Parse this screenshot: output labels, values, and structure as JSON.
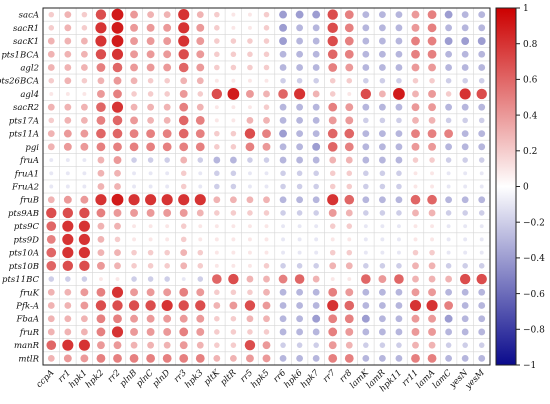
{
  "chart_data": {
    "type": "heatmap",
    "marker": "circle",
    "rows": [
      "sacA",
      "sacR1",
      "sacK1",
      "pts1BCA",
      "agl2",
      "pts26BCA",
      "agl4",
      "sacR2",
      "pts17A",
      "pts11A",
      "pgi",
      "fruA",
      "fruA1",
      "FruA2",
      "fruB",
      "pts9AB",
      "pts9C",
      "pts9D",
      "pts10A",
      "pts10B",
      "pts11BC",
      "fruK",
      "Pfk-A",
      "FbaA",
      "fruR",
      "manR",
      "mtlR"
    ],
    "columns": [
      "ccpA",
      "rr1",
      "hpk1",
      "hpk2",
      "rr2",
      "plnB",
      "plnC",
      "plnD",
      "rr3",
      "hpk3",
      "pltK",
      "pltR",
      "rr5",
      "hpk5",
      "rr6",
      "hpk6",
      "hpk7",
      "rr7",
      "rr8",
      "lamK",
      "lamR",
      "hpk11",
      "rr11",
      "lamA",
      "lamC",
      "yesN",
      "yesM"
    ],
    "values": [
      [
        0.2,
        0.3,
        0.2,
        0.7,
        0.9,
        0.4,
        0.3,
        0.3,
        0.8,
        0.3,
        0.2,
        0.1,
        0.1,
        0.2,
        -0.4,
        -0.4,
        -0.4,
        0.7,
        0.5,
        -0.3,
        -0.3,
        -0.3,
        0.4,
        0.5,
        -0.4,
        -0.3,
        -0.3
      ],
      [
        0.2,
        0.3,
        0.2,
        0.8,
        0.9,
        0.4,
        0.4,
        0.4,
        0.8,
        0.4,
        0.2,
        0.1,
        0.1,
        0.2,
        -0.4,
        -0.3,
        -0.3,
        0.7,
        0.5,
        -0.3,
        -0.3,
        -0.3,
        0.4,
        0.5,
        -0.3,
        -0.3,
        -0.3
      ],
      [
        0.3,
        0.3,
        0.3,
        0.8,
        0.9,
        0.4,
        0.4,
        0.4,
        0.8,
        0.4,
        0.2,
        0.2,
        0.2,
        0.2,
        -0.4,
        -0.3,
        -0.3,
        0.7,
        0.5,
        -0.3,
        -0.3,
        -0.3,
        0.5,
        0.5,
        -0.4,
        -0.4,
        -0.4
      ],
      [
        0.3,
        0.3,
        0.3,
        0.7,
        0.8,
        0.4,
        0.4,
        0.4,
        0.7,
        0.4,
        0.2,
        0.2,
        0.2,
        0.2,
        -0.3,
        -0.3,
        -0.3,
        0.6,
        0.5,
        -0.3,
        -0.3,
        -0.3,
        0.5,
        0.5,
        -0.3,
        -0.3,
        -0.3
      ],
      [
        0.3,
        0.3,
        0.3,
        0.5,
        0.6,
        0.4,
        0.4,
        0.4,
        0.6,
        0.4,
        0.2,
        0.2,
        0.2,
        0.2,
        -0.3,
        -0.3,
        -0.3,
        0.5,
        0.4,
        -0.3,
        -0.3,
        -0.3,
        0.4,
        0.4,
        -0.3,
        -0.3,
        -0.3
      ],
      [
        0.2,
        0.3,
        0.2,
        0.3,
        0.4,
        0.3,
        0.2,
        0.2,
        0.3,
        0.3,
        0.1,
        0.1,
        0.1,
        0.1,
        -0.2,
        -0.2,
        -0.2,
        0.2,
        0.2,
        -0.2,
        -0.2,
        -0.2,
        0.2,
        0.2,
        -0.2,
        -0.2,
        -0.2
      ],
      [
        0.1,
        0.1,
        0.1,
        0.4,
        0.5,
        0.2,
        0.2,
        0.2,
        0.4,
        0.2,
        0.7,
        0.9,
        0.4,
        0.3,
        0.6,
        0.8,
        0.3,
        0.2,
        0.1,
        0.7,
        0.3,
        0.9,
        0.3,
        0.4,
        0.2,
        0.8,
        0.7
      ],
      [
        0.3,
        0.3,
        0.3,
        0.6,
        0.8,
        0.3,
        0.3,
        0.3,
        0.5,
        0.3,
        0.1,
        0.1,
        0.1,
        0.2,
        -0.3,
        -0.3,
        -0.3,
        0.5,
        0.4,
        -0.3,
        -0.3,
        -0.3,
        0.4,
        0.4,
        -0.3,
        -0.3,
        -0.3
      ],
      [
        0.2,
        0.3,
        0.3,
        0.5,
        0.6,
        0.4,
        0.3,
        0.3,
        0.6,
        0.5,
        0.1,
        0.1,
        0.3,
        0.3,
        -0.3,
        -0.3,
        -0.3,
        0.4,
        0.4,
        -0.2,
        -0.2,
        -0.2,
        0.3,
        0.3,
        -0.2,
        -0.2,
        -0.2
      ],
      [
        0.3,
        0.4,
        0.4,
        0.6,
        0.6,
        0.5,
        0.5,
        0.5,
        0.6,
        0.5,
        0.2,
        0.2,
        0.7,
        0.5,
        -0.4,
        -0.3,
        -0.3,
        0.6,
        0.6,
        -0.3,
        -0.3,
        -0.3,
        0.5,
        0.5,
        0.5,
        -0.3,
        -0.3
      ],
      [
        0.3,
        0.4,
        0.4,
        0.5,
        0.5,
        0.5,
        0.5,
        0.5,
        0.5,
        0.5,
        0.2,
        0.2,
        0.5,
        0.4,
        -0.3,
        -0.3,
        -0.4,
        0.6,
        0.5,
        -0.3,
        -0.3,
        -0.3,
        0.4,
        0.4,
        -0.3,
        -0.3,
        -0.3
      ],
      [
        -0.1,
        -0.1,
        -0.1,
        0.3,
        0.4,
        -0.2,
        -0.2,
        -0.2,
        0.3,
        -0.2,
        -0.3,
        -0.3,
        -0.2,
        -0.2,
        -0.3,
        -0.3,
        -0.3,
        0.3,
        0.3,
        -0.3,
        -0.3,
        -0.3,
        0.2,
        0.2,
        -0.2,
        -0.2,
        -0.2
      ],
      [
        -0.1,
        -0.1,
        -0.1,
        0.3,
        0.3,
        -0.1,
        -0.1,
        -0.1,
        0.2,
        -0.1,
        -0.2,
        -0.2,
        -0.1,
        -0.1,
        -0.2,
        -0.2,
        -0.2,
        0.2,
        0.2,
        -0.2,
        -0.2,
        -0.2,
        0.1,
        0.1,
        -0.1,
        -0.1,
        -0.1
      ],
      [
        -0.1,
        -0.1,
        -0.1,
        0.3,
        0.3,
        -0.1,
        -0.1,
        -0.1,
        0.2,
        -0.1,
        -0.2,
        -0.2,
        -0.1,
        -0.1,
        -0.2,
        -0.2,
        -0.2,
        0.2,
        0.2,
        -0.2,
        -0.2,
        -0.2,
        0.1,
        0.1,
        -0.1,
        -0.1,
        -0.1
      ],
      [
        0.3,
        0.4,
        0.4,
        0.8,
        0.9,
        0.8,
        0.8,
        0.8,
        0.8,
        0.8,
        0.3,
        0.3,
        0.3,
        0.3,
        -0.3,
        -0.3,
        -0.3,
        0.8,
        0.6,
        -0.3,
        -0.3,
        -0.3,
        0.6,
        0.6,
        -0.3,
        -0.3,
        -0.3
      ],
      [
        0.7,
        0.7,
        0.7,
        0.5,
        0.4,
        0.4,
        0.4,
        0.4,
        0.4,
        0.3,
        0.2,
        0.2,
        0.2,
        0.2,
        -0.2,
        -0.2,
        -0.2,
        0.4,
        0.3,
        -0.2,
        -0.2,
        -0.2,
        0.3,
        0.3,
        -0.2,
        -0.2,
        -0.2
      ],
      [
        0.6,
        0.8,
        0.8,
        0.3,
        0.3,
        0.1,
        0.1,
        0.1,
        0.2,
        0.1,
        0.1,
        0.1,
        0.1,
        0.1,
        -0.1,
        -0.1,
        -0.1,
        0.2,
        0.2,
        -0.1,
        -0.1,
        -0.1,
        0.1,
        0.1,
        -0.1,
        -0.1,
        -0.1
      ],
      [
        0.5,
        0.8,
        0.8,
        0.3,
        0.2,
        0.1,
        0.1,
        0.1,
        0.2,
        0.1,
        0.1,
        0.1,
        0.1,
        0.1,
        -0.1,
        -0.1,
        -0.1,
        0.1,
        0.1,
        -0.1,
        -0.1,
        -0.1,
        0.1,
        0.1,
        -0.1,
        -0.1,
        -0.1
      ],
      [
        0.6,
        0.8,
        0.8,
        0.3,
        0.3,
        0.2,
        0.2,
        0.2,
        0.3,
        0.2,
        0.1,
        0.1,
        0.1,
        0.1,
        -0.1,
        -0.1,
        -0.1,
        0.2,
        0.2,
        -0.1,
        -0.1,
        -0.1,
        0.2,
        0.2,
        -0.1,
        -0.1,
        -0.1
      ],
      [
        0.6,
        0.7,
        0.7,
        0.4,
        0.3,
        0.2,
        0.2,
        0.2,
        0.3,
        0.2,
        0.1,
        0.1,
        0.1,
        0.2,
        -0.2,
        -0.2,
        -0.2,
        0.3,
        0.3,
        -0.2,
        -0.2,
        -0.2,
        0.3,
        0.3,
        -0.2,
        -0.2,
        -0.2
      ],
      [
        -0.2,
        -0.2,
        -0.2,
        0.1,
        0.1,
        -0.2,
        -0.2,
        -0.2,
        -0.1,
        -0.2,
        0.6,
        0.7,
        0.3,
        0.3,
        0.5,
        0.6,
        0.3,
        0.1,
        0.1,
        0.6,
        0.4,
        0.6,
        0.3,
        0.3,
        0.3,
        0.7,
        0.7
      ],
      [
        0.3,
        0.3,
        0.4,
        0.5,
        0.8,
        0.4,
        0.4,
        0.4,
        0.5,
        0.4,
        0.2,
        0.2,
        0.2,
        0.3,
        -0.3,
        -0.3,
        -0.3,
        0.5,
        0.4,
        -0.3,
        -0.3,
        -0.3,
        0.4,
        0.4,
        -0.3,
        -0.3,
        -0.3
      ],
      [
        0.3,
        0.3,
        0.4,
        0.7,
        0.7,
        0.7,
        0.7,
        0.8,
        0.7,
        0.7,
        0.3,
        0.4,
        0.7,
        0.4,
        -0.3,
        -0.3,
        -0.3,
        0.8,
        0.6,
        -0.3,
        -0.3,
        -0.3,
        0.8,
        0.8,
        0.5,
        -0.3,
        -0.3
      ],
      [
        0.3,
        0.3,
        0.3,
        0.5,
        0.5,
        0.4,
        0.4,
        0.4,
        0.4,
        0.4,
        0.2,
        0.2,
        0.3,
        0.3,
        -0.3,
        -0.3,
        -0.4,
        0.5,
        0.5,
        -0.4,
        -0.3,
        -0.3,
        0.4,
        0.4,
        -0.4,
        -0.3,
        -0.3
      ],
      [
        0.3,
        0.3,
        0.3,
        0.5,
        0.8,
        0.4,
        0.4,
        0.4,
        0.5,
        0.4,
        0.2,
        0.2,
        0.2,
        0.2,
        -0.3,
        -0.3,
        -0.3,
        0.5,
        0.4,
        -0.3,
        -0.3,
        -0.3,
        0.4,
        0.4,
        -0.3,
        -0.3,
        -0.3
      ],
      [
        0.6,
        0.8,
        0.8,
        0.4,
        0.4,
        0.3,
        0.3,
        0.3,
        0.4,
        0.3,
        0.2,
        0.2,
        0.7,
        0.4,
        -0.2,
        -0.2,
        -0.2,
        0.4,
        0.3,
        -0.2,
        -0.2,
        -0.2,
        0.3,
        0.3,
        -0.2,
        -0.2,
        -0.2
      ],
      [
        0.3,
        0.4,
        0.4,
        0.5,
        0.5,
        0.5,
        0.5,
        0.5,
        0.5,
        0.5,
        0.3,
        0.3,
        0.4,
        0.4,
        -0.3,
        -0.3,
        -0.3,
        0.5,
        0.5,
        -0.3,
        -0.3,
        -0.3,
        0.5,
        0.5,
        -0.3,
        -0.3,
        -0.3
      ]
    ],
    "colorbar": {
      "min": -1,
      "max": 1,
      "ticks": [
        1,
        0.8,
        0.6,
        0.4,
        0.2,
        0,
        -0.2,
        -0.4,
        -0.6,
        -0.8,
        -1
      ],
      "tick_labels": [
        "1",
        "0.8",
        "0.6",
        "0.4",
        "0.2",
        "0",
        "−0.2",
        "−0.4",
        "−0.6",
        "−0.8",
        "−1"
      ],
      "low_color": "#0a0a8c",
      "mid_color": "#ffffff",
      "high_color": "#cc0000"
    },
    "title": "",
    "xlabel": "",
    "ylabel": "",
    "grid": true
  }
}
